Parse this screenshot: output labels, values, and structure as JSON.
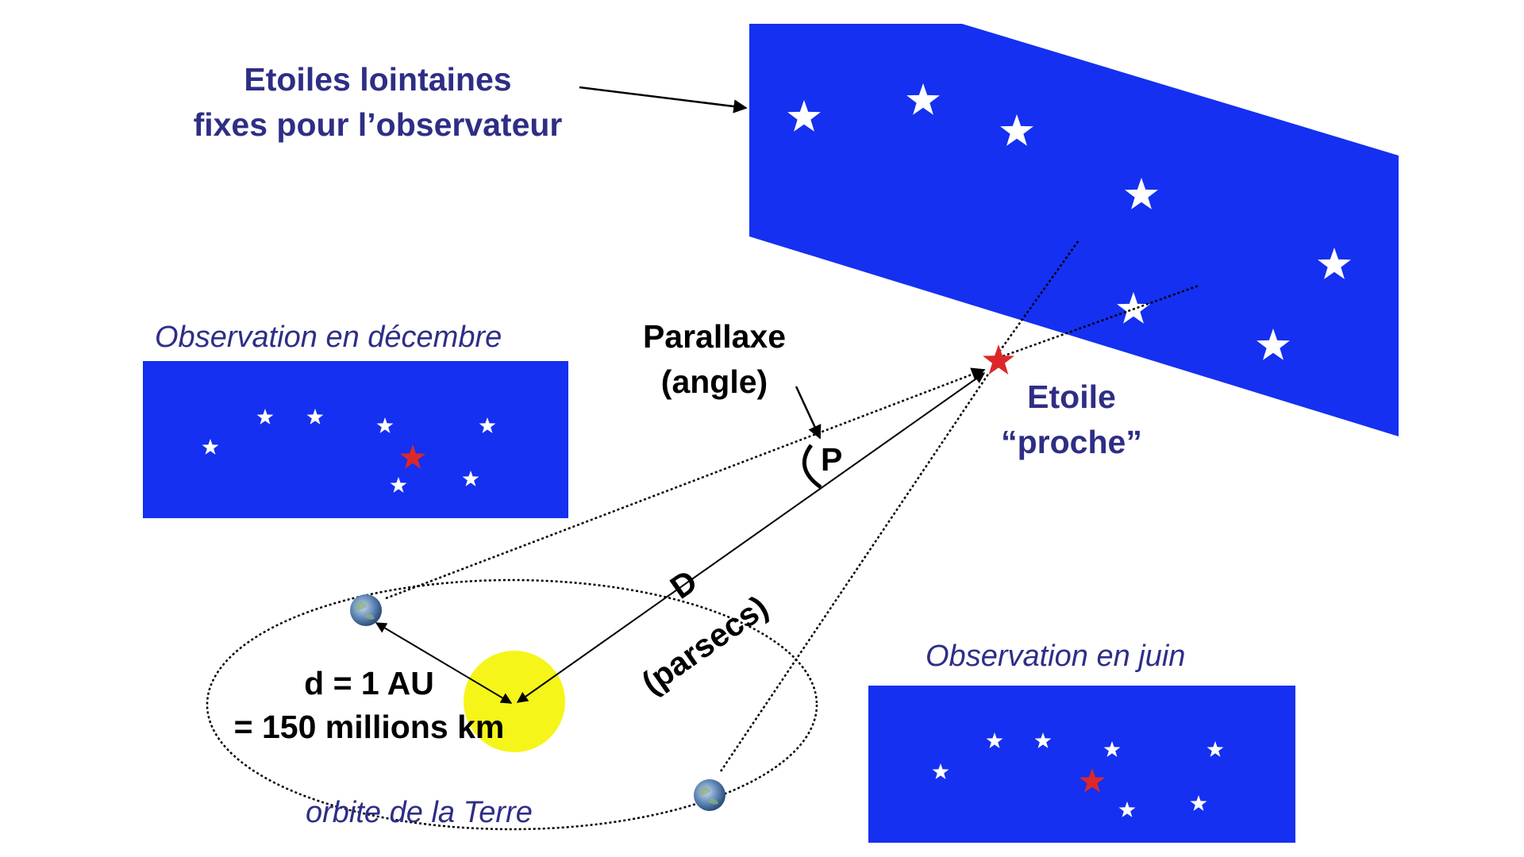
{
  "labels": {
    "distant_stars": [
      "Etoiles lointaines",
      "fixes pour l’observateur"
    ],
    "observation_december": "Observation en décembre",
    "observation_june": "Observation en juin",
    "parallax": [
      "Parallaxe",
      "(angle)"
    ],
    "parallax_symbol": "P",
    "near_star": [
      "Etoile",
      "“proche”"
    ],
    "distance_symbol": "D",
    "distance_unit": "(parsecs)",
    "earth_sun_distance": [
      "d = 1 AU",
      "= 150 millions km"
    ],
    "orbit": "orbite de la Terre"
  },
  "colors": {
    "sky_panel": "#1530f0",
    "near_star": "#dc2828",
    "sun": "#f5f51a",
    "text_blue": "#2e2e86"
  }
}
